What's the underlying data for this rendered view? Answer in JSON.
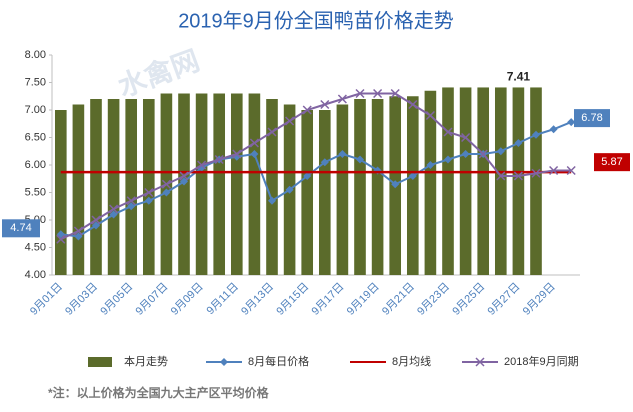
{
  "chart_data": {
    "type": "bar_line",
    "title": "2019年9月份全国鸭苗价格走势",
    "watermark": "水禽网",
    "footnote": "*注：以上价格为全国九大主产区平均价格",
    "categories": [
      "9月01日",
      null,
      "9月03日",
      null,
      "9月05日",
      null,
      "9月07日",
      null,
      "9月09日",
      null,
      "9月11日",
      null,
      "9月13日",
      null,
      "9月15日",
      null,
      "9月17日",
      null,
      "9月19日",
      null,
      "9月21日",
      null,
      "9月23日",
      null,
      "9月25日",
      null,
      "9月27日",
      null,
      "9月29日",
      null
    ],
    "ylim": [
      4,
      8
    ],
    "yticks": [
      {
        "value": 4,
        "label": "4.00"
      },
      {
        "value": 4.5,
        "label": "4.50"
      },
      {
        "value": 5,
        "label": "5.00"
      },
      {
        "value": 5.5,
        "label": "5.50"
      },
      {
        "value": 6,
        "label": "6.00"
      },
      {
        "value": 6.5,
        "label": "6.50"
      },
      {
        "value": 7,
        "label": "7.00"
      },
      {
        "value": 7.5,
        "label": "7.50"
      },
      {
        "value": 8,
        "label": "8.00"
      }
    ],
    "grid": false,
    "legend": "bottom",
    "series": [
      {
        "name": "本月走势",
        "kind": "bar",
        "color": "#5b6b2b",
        "values": [
          7.0,
          7.1,
          7.2,
          7.2,
          7.2,
          7.2,
          7.3,
          7.3,
          7.3,
          7.3,
          7.3,
          7.3,
          7.2,
          7.1,
          7.0,
          7.0,
          7.1,
          7.2,
          7.2,
          7.25,
          7.25,
          7.35,
          7.41,
          7.41,
          7.41,
          7.41,
          7.41,
          7.41,
          null,
          null
        ]
      },
      {
        "name": "8月每日价格",
        "kind": "line",
        "marker": "diamond",
        "color": "#4f81bd",
        "values": [
          4.74,
          4.7,
          4.9,
          5.1,
          5.25,
          5.35,
          5.5,
          5.7,
          5.95,
          6.1,
          6.15,
          6.2,
          5.35,
          5.55,
          5.8,
          6.05,
          6.2,
          6.1,
          5.9,
          5.65,
          5.8,
          6.0,
          6.1,
          6.2,
          6.2,
          6.25,
          6.4,
          6.55,
          6.65,
          6.78
        ]
      },
      {
        "name": "8月均线",
        "kind": "line",
        "marker": "none",
        "color": "#c00000",
        "values": [
          5.87,
          5.87,
          5.87,
          5.87,
          5.87,
          5.87,
          5.87,
          5.87,
          5.87,
          5.87,
          5.87,
          5.87,
          5.87,
          5.87,
          5.87,
          5.87,
          5.87,
          5.87,
          5.87,
          5.87,
          5.87,
          5.87,
          5.87,
          5.87,
          5.87,
          5.87,
          5.87,
          5.87,
          5.87,
          5.87
        ]
      },
      {
        "name": "2018年9月同期",
        "kind": "line",
        "marker": "x",
        "color": "#8064a2",
        "values": [
          4.65,
          4.8,
          5.0,
          5.2,
          5.35,
          5.5,
          5.65,
          5.8,
          6.0,
          6.1,
          6.2,
          6.4,
          6.6,
          6.8,
          7.0,
          7.1,
          7.2,
          7.3,
          7.3,
          7.3,
          7.1,
          6.9,
          6.6,
          6.5,
          6.2,
          5.8,
          5.8,
          5.85,
          5.9,
          5.9
        ]
      }
    ]
  }
}
